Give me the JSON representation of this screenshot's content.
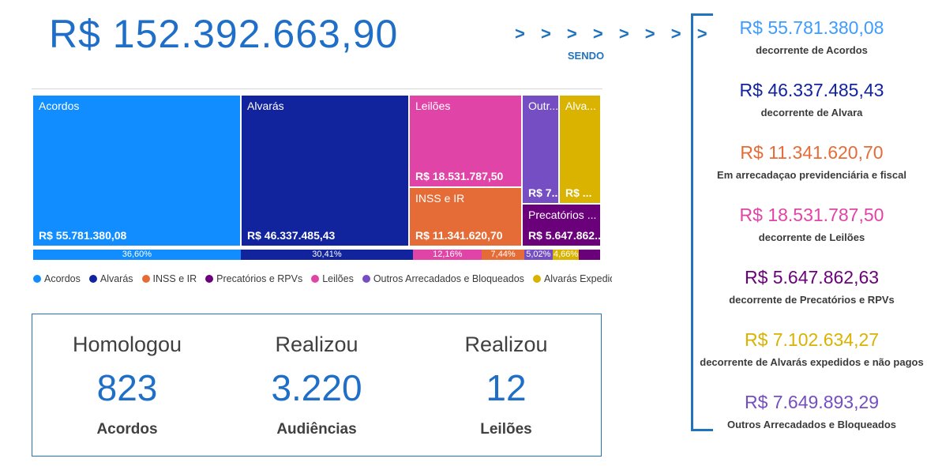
{
  "header": {
    "total": "R$ 152.392.663,90",
    "chevrons": "> > > > > > > >",
    "sendo": "SENDO",
    "accent_blue": "#2073BC"
  },
  "treemap": {
    "boxes": [
      {
        "label": "Acordos",
        "value": "R$ 55.781.380,08",
        "color": "#118DFF"
      },
      {
        "label": "Alvarás",
        "value": "R$ 46.337.485,43",
        "color": "#12239E"
      },
      {
        "label": "Leilões",
        "value": "R$ 18.531.787,50",
        "color": "#E044A7"
      },
      {
        "label": "INSS e IR",
        "value": "R$ 11.341.620,70",
        "color": "#E66C37"
      },
      {
        "label": "Outr...",
        "value": "R$ 7....",
        "color": "#744EC2"
      },
      {
        "label": "Alva...",
        "value": "R$ ...",
        "color": "#D9B300"
      },
      {
        "label": "Precatórios ...",
        "value": "R$ 5.647.862..",
        "color": "#6B007B"
      }
    ]
  },
  "percent_bar": {
    "segments": [
      {
        "label": "36,60%",
        "pct": 36.6,
        "color": "#118DFF"
      },
      {
        "label": "30,41%",
        "pct": 30.41,
        "color": "#12239E"
      },
      {
        "label": "12,16%",
        "pct": 12.16,
        "color": "#E044A7"
      },
      {
        "label": "7,44%",
        "pct": 7.44,
        "color": "#E66C37"
      },
      {
        "label": "5,02%",
        "pct": 5.02,
        "color": "#744EC2"
      },
      {
        "label": "4,66%",
        "pct": 4.66,
        "color": "#D9B300"
      },
      {
        "label": "",
        "pct": 3.71,
        "color": "#6B007B"
      }
    ]
  },
  "legend": {
    "items": [
      {
        "label": "Acordos",
        "color": "#118DFF"
      },
      {
        "label": "Alvarás",
        "color": "#12239E"
      },
      {
        "label": "INSS e IR",
        "color": "#E66C37"
      },
      {
        "label": "Precatórios e RPVs",
        "color": "#6B007B"
      },
      {
        "label": "Leilões",
        "color": "#E044A7"
      },
      {
        "label": "Outros Arrecadados e Bloqueados",
        "color": "#744EC2"
      },
      {
        "label": "Alvarás Expedidos e Não ...",
        "color": "#D9B300"
      }
    ]
  },
  "kpis": {
    "cards": [
      {
        "action": "Homologou",
        "value": "823",
        "subject": "Acordos"
      },
      {
        "action": "Realizou",
        "value": "3.220",
        "subject": "Audiências"
      },
      {
        "action": "Realizou",
        "value": "12",
        "subject": "Leilões"
      }
    ]
  },
  "right_panel": {
    "items": [
      {
        "value": "R$ 55.781.380,08",
        "label": "decorrente de Acordos",
        "color": "#3E9BFF"
      },
      {
        "value": "R$ 46.337.485,43",
        "label": "decorrente de Alvara",
        "color": "#12239E"
      },
      {
        "value": "R$ 11.341.620,70",
        "label": "Em arrecadaçao previdenciária e fiscal",
        "color": "#E66C37"
      },
      {
        "value": "R$ 18.531.787,50",
        "label": "decorrente de Leilões",
        "color": "#E044A7"
      },
      {
        "value": "R$ 5.647.862,63",
        "label": "decorrente de Precatórios e RPVs",
        "color": "#6B007B"
      },
      {
        "value": "R$ 7.102.634,27",
        "label": "decorrente de Alvarás expedidos e não pagos",
        "color": "#D9B300"
      },
      {
        "value": "R$ 7.649.893,29",
        "label": "Outros Arrecadados e Bloqueados",
        "color": "#744EC2"
      }
    ]
  },
  "chart_data": [
    {
      "type": "treemap",
      "title": "R$ 152.392.663,90",
      "categories": [
        "Acordos",
        "Alvarás",
        "Leilões",
        "INSS e IR",
        "Outros Arrecadados e Bloqueados",
        "Alvarás Expedidos e Não Pagos",
        "Precatórios e RPVs"
      ],
      "values": [
        55781380.08,
        46337485.43,
        18531787.5,
        11341620.7,
        7649893.29,
        7102634.27,
        5647862.63
      ],
      "percentages": [
        36.6,
        30.41,
        12.16,
        7.44,
        5.02,
        4.66,
        3.71
      ],
      "colors": [
        "#118DFF",
        "#12239E",
        "#E044A7",
        "#E66C37",
        "#744EC2",
        "#D9B300",
        "#6B007B"
      ],
      "legend_position": "bottom"
    },
    {
      "type": "kpi",
      "items": [
        {
          "label": "Homologou Acordos",
          "value": 823
        },
        {
          "label": "Realizou Audiências",
          "value": 3220
        },
        {
          "label": "Realizou Leilões",
          "value": 12
        }
      ]
    }
  ]
}
